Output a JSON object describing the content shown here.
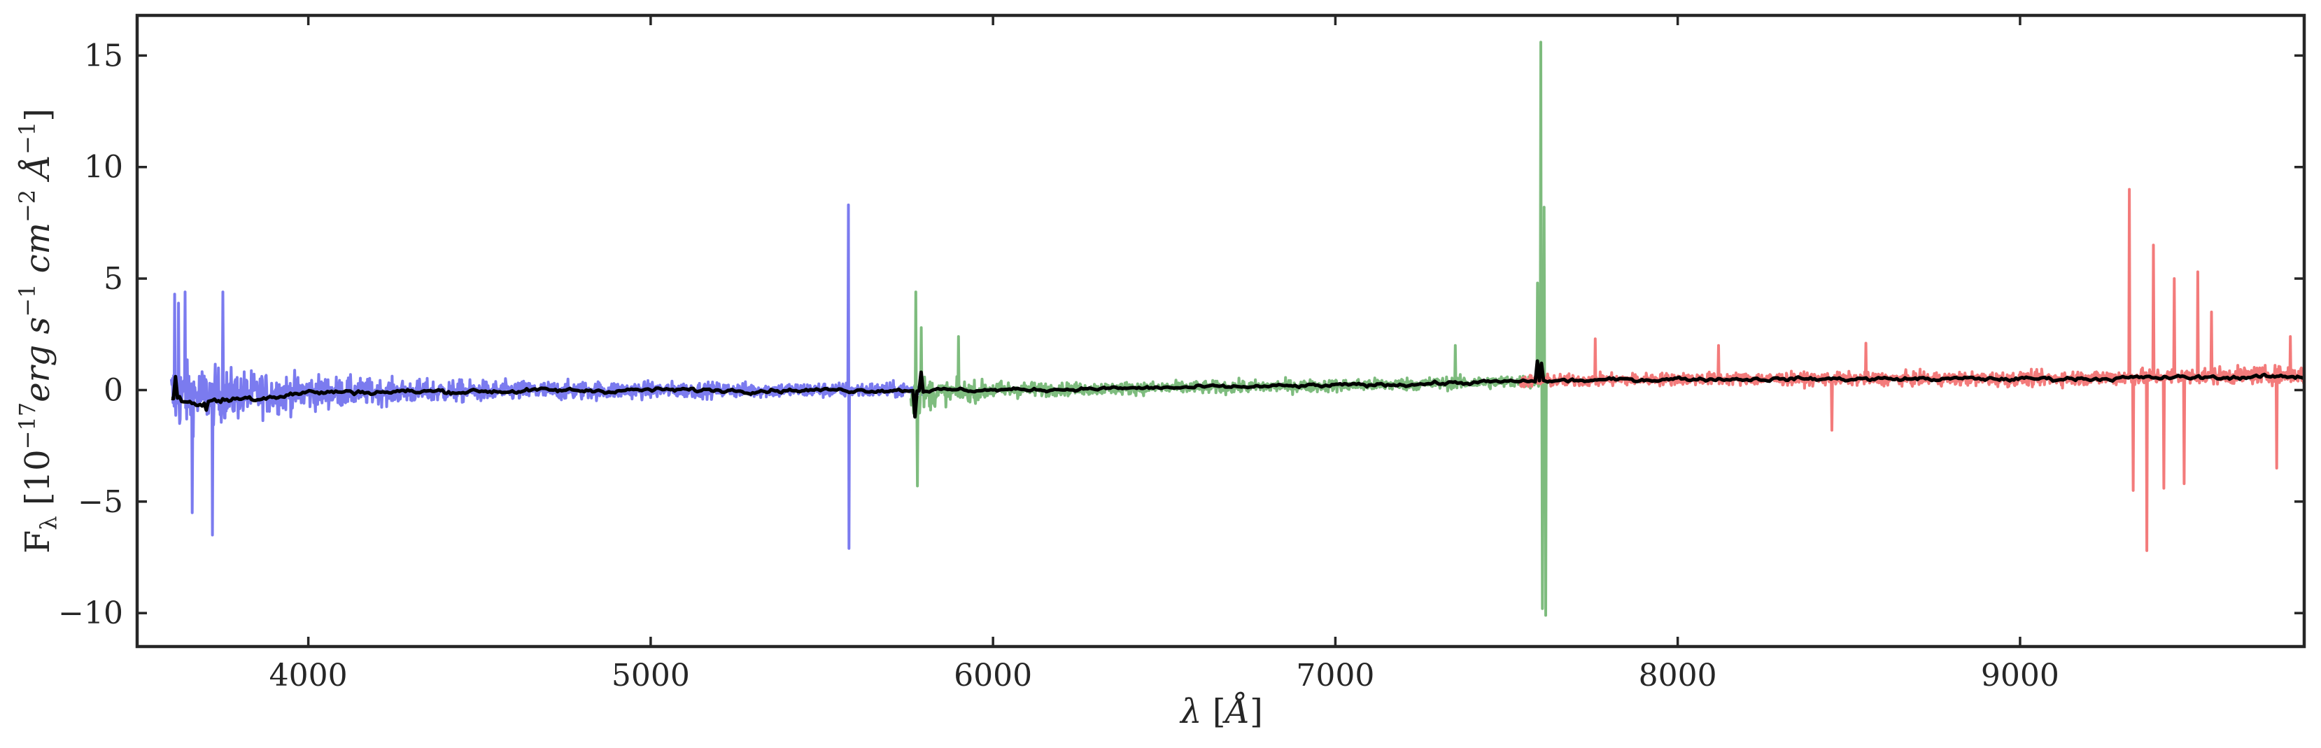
{
  "chart_data": {
    "type": "line",
    "title": "",
    "xlabel": "λ [Å]",
    "ylabel": "F_λ [10^-17 erg s^-1 cm^-2 Å^-1]",
    "ylabel_parts": {
      "prefix": "F",
      "sub": "λ",
      "open": " [10",
      "exp1": "−17",
      "erg": "erg s",
      "exp2": "−1",
      "cm": " cm",
      "exp3": "−2",
      "ang": " Å",
      "exp4": "−1",
      "close": "]"
    },
    "xlabel_parts": {
      "lambda": "λ",
      "open": " [",
      "ang": "Å",
      "close": "]"
    },
    "xlim": [
      3500,
      9830
    ],
    "ylim": [
      -11.5,
      16.8
    ],
    "grid": false,
    "legend": "none",
    "x_ticks": [
      4000,
      5000,
      6000,
      7000,
      8000,
      9000
    ],
    "x_tick_labels": [
      "4000",
      "5000",
      "6000",
      "7000",
      "8000",
      "9000"
    ],
    "y_ticks": [
      -10,
      -5,
      0,
      5,
      10,
      15
    ],
    "y_tick_labels": [
      "−10",
      "−5",
      "0",
      "5",
      "10",
      "15"
    ],
    "series": [
      {
        "color": "#7b7bef",
        "role": "blue arm spectrum",
        "range": [
          3600,
          5800
        ],
        "baseline": [
          [
            3600,
            -0.3
          ],
          [
            4000,
            -0.1
          ],
          [
            5000,
            0.0
          ],
          [
            5800,
            0.0
          ]
        ],
        "noise": [
          [
            3600,
            2.8
          ],
          [
            3700,
            2.3
          ],
          [
            3900,
            1.6
          ],
          [
            4200,
            1.0
          ],
          [
            4600,
            0.8
          ],
          [
            5200,
            0.6
          ],
          [
            5800,
            0.6
          ]
        ],
        "spikes": [
          [
            3610,
            4.3
          ],
          [
            3620,
            3.9
          ],
          [
            3640,
            4.4
          ],
          [
            3660,
            -5.5
          ],
          [
            3720,
            -6.5
          ],
          [
            3750,
            4.4
          ],
          [
            5578,
            8.3
          ],
          [
            5580,
            -7.1
          ]
        ]
      },
      {
        "color": "#7ebc7e",
        "role": "green arm spectrum",
        "range": [
          5760,
          7630
        ],
        "baseline": [
          [
            5760,
            -0.2
          ],
          [
            6000,
            0.0
          ],
          [
            7000,
            0.2
          ],
          [
            7600,
            0.4
          ]
        ],
        "noise": [
          [
            5760,
            1.8
          ],
          [
            5850,
            0.9
          ],
          [
            6200,
            0.5
          ],
          [
            7200,
            0.5
          ],
          [
            7630,
            0.5
          ]
        ],
        "spikes": [
          [
            5775,
            4.4
          ],
          [
            5780,
            -4.3
          ],
          [
            5790,
            2.8
          ],
          [
            5900,
            2.4
          ],
          [
            7350,
            2.0
          ],
          [
            7590,
            4.8
          ],
          [
            7600,
            15.6
          ],
          [
            7605,
            -9.8
          ],
          [
            7610,
            8.2
          ],
          [
            7615,
            -10.1
          ]
        ]
      },
      {
        "color": "#f37b7b",
        "role": "red arm spectrum",
        "range": [
          7540,
          9830
        ],
        "baseline": [
          [
            7540,
            0.4
          ],
          [
            8000,
            0.5
          ],
          [
            9000,
            0.5
          ],
          [
            9830,
            0.7
          ]
        ],
        "noise": [
          [
            7540,
            0.5
          ],
          [
            8500,
            0.5
          ],
          [
            9200,
            0.6
          ],
          [
            9830,
            0.7
          ]
        ],
        "spikes": [
          [
            7760,
            2.3
          ],
          [
            8120,
            2.0
          ],
          [
            8450,
            -1.8
          ],
          [
            8550,
            2.1
          ],
          [
            9320,
            9.0
          ],
          [
            9330,
            -4.5
          ],
          [
            9370,
            -7.2
          ],
          [
            9390,
            6.5
          ],
          [
            9420,
            -4.4
          ],
          [
            9450,
            5.0
          ],
          [
            9480,
            -4.2
          ],
          [
            9520,
            5.3
          ],
          [
            9560,
            3.5
          ],
          [
            9750,
            -3.5
          ],
          [
            9790,
            2.4
          ]
        ]
      },
      {
        "color": "#000000",
        "role": "smoothed spectrum",
        "range": [
          3600,
          9830
        ],
        "baseline": [
          [
            3600,
            -0.3
          ],
          [
            3650,
            -0.6
          ],
          [
            4000,
            -0.1
          ],
          [
            5000,
            0.0
          ],
          [
            6000,
            0.0
          ],
          [
            7000,
            0.2
          ],
          [
            7600,
            0.4
          ],
          [
            8000,
            0.5
          ],
          [
            9000,
            0.5
          ],
          [
            9830,
            0.6
          ]
        ],
        "noise": [
          [
            3600,
            0.3
          ],
          [
            4000,
            0.15
          ],
          [
            6000,
            0.1
          ],
          [
            9830,
            0.12
          ]
        ],
        "spikes": [
          [
            3610,
            0.6
          ],
          [
            3700,
            -0.9
          ],
          [
            5775,
            -1.2
          ],
          [
            5790,
            0.8
          ],
          [
            7590,
            1.3
          ],
          [
            7605,
            1.2
          ]
        ]
      }
    ]
  }
}
